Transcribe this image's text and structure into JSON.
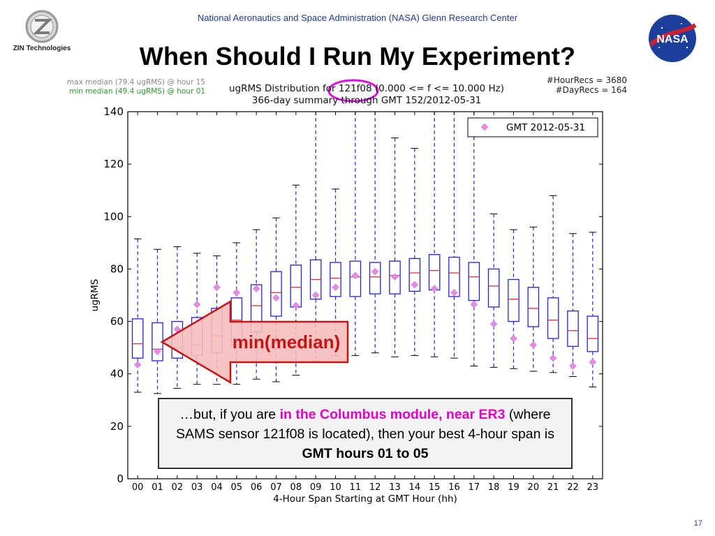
{
  "header": {
    "organization": "National Aeronautics and Space Administration (NASA) Glenn Research Center",
    "title": "When Should I Run My Experiment?",
    "zin_logo_text": "ZIN Technologies",
    "nasa_logo_text": "NASA",
    "page_number": "17"
  },
  "notes": {
    "max_median": "max median (79.4 ugRMS) @ hour 15",
    "min_median": "min median (49.4 ugRMS) @ hour 01",
    "hour_recs": "#HourRecs = 3680",
    "day_recs": "#DayRecs = 164"
  },
  "colors": {
    "header_text": "#1f3a93",
    "box": "#2323d0",
    "median": "#e23030",
    "marker": "#e58ae5",
    "arrow_fill": "#f6bcbc",
    "arrow_stroke": "#c41515",
    "callout_highlight": "#e000c8",
    "circle": "#dd10dd"
  },
  "annotation": {
    "arrow_label": "min(median)"
  },
  "callout": {
    "part1": "…but, if you are ",
    "highlight": "in the Columbus module, near ER3",
    "part2": " (where SAMS sensor 121f08 is located), then your best 4-hour span is ",
    "bold": "GMT hours 01 to 05"
  },
  "chart_data": {
    "type": "box",
    "title_line1": "ugRMS Distribution for 121f08 (0.000 <= f <= 10.000 Hz)",
    "title_line2": "366-day summary through GMT 152/2012-05-31",
    "xlabel": "4-Hour Span Starting at GMT Hour (hh)",
    "ylabel": "ugRMS",
    "ylim": [
      0,
      140
    ],
    "yticks": [
      0,
      20,
      40,
      60,
      80,
      100,
      120,
      140
    ],
    "legend": {
      "label": "GMT 2012-05-31",
      "placement": "top-right"
    },
    "categories": [
      "00",
      "01",
      "02",
      "03",
      "04",
      "05",
      "06",
      "07",
      "08",
      "09",
      "10",
      "11",
      "12",
      "13",
      "14",
      "15",
      "16",
      "17",
      "18",
      "19",
      "20",
      "21",
      "22",
      "23"
    ],
    "whisker_low": [
      33,
      32.5,
      34.5,
      36,
      36,
      36,
      38,
      37,
      39.5,
      45,
      47,
      47,
      48,
      46.5,
      47,
      46.5,
      46,
      43,
      42.5,
      42,
      41,
      40.5,
      39,
      35
    ],
    "q1": [
      46,
      45,
      46,
      47,
      48,
      51,
      56,
      62,
      65.5,
      68.5,
      69.5,
      69.5,
      70.5,
      70.5,
      71.5,
      72,
      69.5,
      68,
      65.5,
      60,
      58,
      53.5,
      50.5,
      48.5
    ],
    "median": [
      51.5,
      49.4,
      49.8,
      51,
      54.5,
      60.5,
      66,
      71,
      73,
      76,
      76.5,
      77,
      77,
      77.5,
      78.5,
      79.4,
      78.5,
      77,
      73.5,
      68.5,
      65,
      60.5,
      56.5,
      53.5
    ],
    "q3": [
      61,
      59.5,
      60,
      61.5,
      65,
      69,
      74,
      79,
      81.5,
      83.5,
      82.5,
      83,
      82.5,
      83,
      84,
      85.5,
      84.5,
      82.5,
      80,
      76,
      73,
      69,
      64,
      62
    ],
    "whisker_high": [
      91.5,
      87.5,
      88.5,
      86,
      85,
      90,
      95,
      99.5,
      112,
      140,
      110.5,
      140,
      140,
      130,
      126,
      140,
      140,
      140,
      101,
      95,
      96,
      108,
      93.5,
      94
    ],
    "markers": [
      43.5,
      48.5,
      57,
      66.5,
      73,
      71,
      72.5,
      69,
      66,
      70,
      73,
      77.5,
      79,
      77,
      74,
      72.5,
      71,
      66.5,
      59,
      53.5,
      51,
      46,
      43,
      44.5
    ]
  }
}
